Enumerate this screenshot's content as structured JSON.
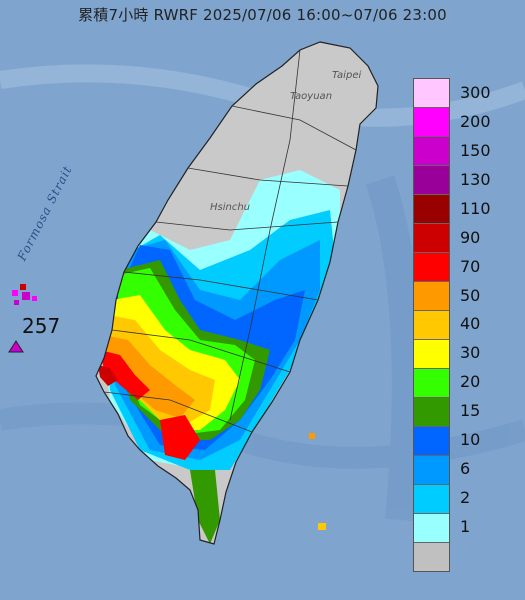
{
  "title": "累積7小時 RWRF 2025/07/06 16:00~07/06 23:00",
  "strait_label": "Formosa Strait",
  "place_labels": [
    "Taipei",
    "Taoyuan",
    "Hsinchu"
  ],
  "max_value_label": "257",
  "colors": {
    "ocean": "#7fa5cf",
    "land_gray": "#c9c9c9",
    "coast": "#222222"
  },
  "legend": {
    "items": [
      {
        "label": "300",
        "color": "#ffc6ff"
      },
      {
        "label": "200",
        "color": "#ff00ff"
      },
      {
        "label": "150",
        "color": "#cc00cc"
      },
      {
        "label": "130",
        "color": "#990099"
      },
      {
        "label": "110",
        "color": "#990000"
      },
      {
        "label": "90",
        "color": "#cc0000"
      },
      {
        "label": "70",
        "color": "#ff0000"
      },
      {
        "label": "50",
        "color": "#ff9900"
      },
      {
        "label": "40",
        "color": "#ffc800"
      },
      {
        "label": "30",
        "color": "#ffff00"
      },
      {
        "label": "20",
        "color": "#33ff00"
      },
      {
        "label": "15",
        "color": "#339900"
      },
      {
        "label": "10",
        "color": "#0066ff"
      },
      {
        "label": "6",
        "color": "#0099ff"
      },
      {
        "label": "2",
        "color": "#00ccff"
      },
      {
        "label": "1",
        "color": "#99ffff"
      },
      {
        "label": "",
        "color": "#c0c0c0"
      }
    ]
  }
}
